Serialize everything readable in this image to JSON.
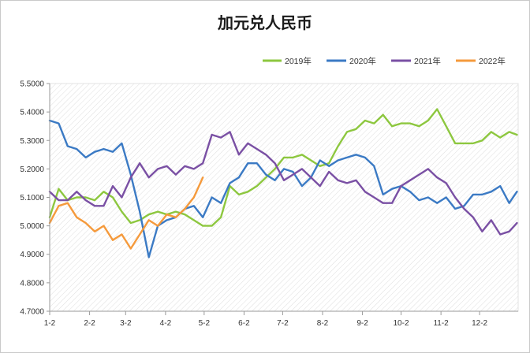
{
  "chart_data": {
    "type": "line",
    "title": "加元兑人民币",
    "xlabel": "",
    "ylabel": "",
    "ylim": [
      4.7,
      5.5
    ],
    "yticks": [
      "4.7000",
      "4.8000",
      "4.9000",
      "5.0000",
      "5.1000",
      "5.2000",
      "5.3000",
      "5.4000",
      "5.5000"
    ],
    "xticks": [
      "1-2",
      "2-2",
      "3-2",
      "4-2",
      "5-2",
      "6-2",
      "7-2",
      "8-2",
      "9-2",
      "10-2",
      "11-2",
      "12-2"
    ],
    "legend": "top-right",
    "grid": false,
    "x": [
      "1-2",
      "1-9",
      "1-16",
      "1-23",
      "1-30",
      "2-6",
      "2-13",
      "2-20",
      "2-27",
      "3-6",
      "3-13",
      "3-20",
      "3-27",
      "4-3",
      "4-10",
      "4-17",
      "4-24",
      "5-1",
      "5-8",
      "5-15",
      "5-22",
      "5-29",
      "6-5",
      "6-12",
      "6-19",
      "6-26",
      "7-3",
      "7-10",
      "7-17",
      "7-24",
      "7-31",
      "8-7",
      "8-14",
      "8-21",
      "8-28",
      "9-4",
      "9-11",
      "9-18",
      "9-25",
      "10-2",
      "10-9",
      "10-16",
      "10-23",
      "10-30",
      "11-6",
      "11-13",
      "11-20",
      "11-27",
      "12-4",
      "12-11",
      "12-18",
      "12-25",
      "12-31"
    ],
    "series": [
      {
        "name": "2019年",
        "color": "#8dc73f",
        "values": [
          5.03,
          5.13,
          5.09,
          5.1,
          5.1,
          5.09,
          5.12,
          5.1,
          5.05,
          5.01,
          5.02,
          5.04,
          5.05,
          5.04,
          5.05,
          5.04,
          5.02,
          5.0,
          5.0,
          5.03,
          5.14,
          5.11,
          5.12,
          5.14,
          5.17,
          5.2,
          5.24,
          5.24,
          5.25,
          5.23,
          5.21,
          5.22,
          5.28,
          5.33,
          5.34,
          5.37,
          5.36,
          5.39,
          5.35,
          5.36,
          5.36,
          5.35,
          5.37,
          5.41,
          5.35,
          5.29,
          5.29,
          5.29,
          5.3,
          5.33,
          5.31,
          5.33,
          5.32
        ]
      },
      {
        "name": "2020年",
        "color": "#3b7ac4",
        "values": [
          5.37,
          5.36,
          5.28,
          5.27,
          5.24,
          5.26,
          5.27,
          5.26,
          5.29,
          5.18,
          5.05,
          4.89,
          5.0,
          5.02,
          5.03,
          5.06,
          5.07,
          5.03,
          5.1,
          5.08,
          5.15,
          5.17,
          5.22,
          5.22,
          5.18,
          5.16,
          5.2,
          5.19,
          5.14,
          5.17,
          5.23,
          5.21,
          5.23,
          5.24,
          5.25,
          5.24,
          5.21,
          5.11,
          5.13,
          5.14,
          5.12,
          5.09,
          5.1,
          5.08,
          5.1,
          5.06,
          5.07,
          5.11,
          5.11,
          5.12,
          5.14,
          5.08,
          5.12
        ]
      },
      {
        "name": "2021年",
        "color": "#7a50a4",
        "values": [
          5.12,
          5.09,
          5.09,
          5.12,
          5.09,
          5.07,
          5.07,
          5.14,
          5.1,
          5.17,
          5.22,
          5.17,
          5.2,
          5.21,
          5.18,
          5.21,
          5.2,
          5.22,
          5.32,
          5.31,
          5.33,
          5.25,
          5.29,
          5.27,
          5.25,
          5.22,
          5.16,
          5.18,
          5.2,
          5.17,
          5.14,
          5.19,
          5.16,
          5.15,
          5.16,
          5.12,
          5.1,
          5.08,
          5.08,
          5.14,
          5.16,
          5.18,
          5.2,
          5.17,
          5.15,
          5.1,
          5.06,
          5.03,
          4.98,
          5.02,
          4.97,
          4.98,
          5.01
        ]
      },
      {
        "name": "2022年",
        "color": "#f59a3c",
        "values": [
          5.01,
          5.07,
          5.08,
          5.03,
          5.01,
          4.98,
          5.0,
          4.95,
          4.97,
          4.92,
          4.97,
          5.02,
          5.0,
          5.04,
          5.03,
          5.06,
          5.1,
          5.17,
          null,
          null,
          null,
          null,
          null,
          null,
          null,
          null,
          null,
          null,
          null,
          null,
          null,
          null,
          null,
          null,
          null,
          null,
          null,
          null,
          null,
          null,
          null,
          null,
          null,
          null,
          null,
          null,
          null,
          null,
          null,
          null,
          null,
          null,
          null
        ]
      }
    ]
  }
}
